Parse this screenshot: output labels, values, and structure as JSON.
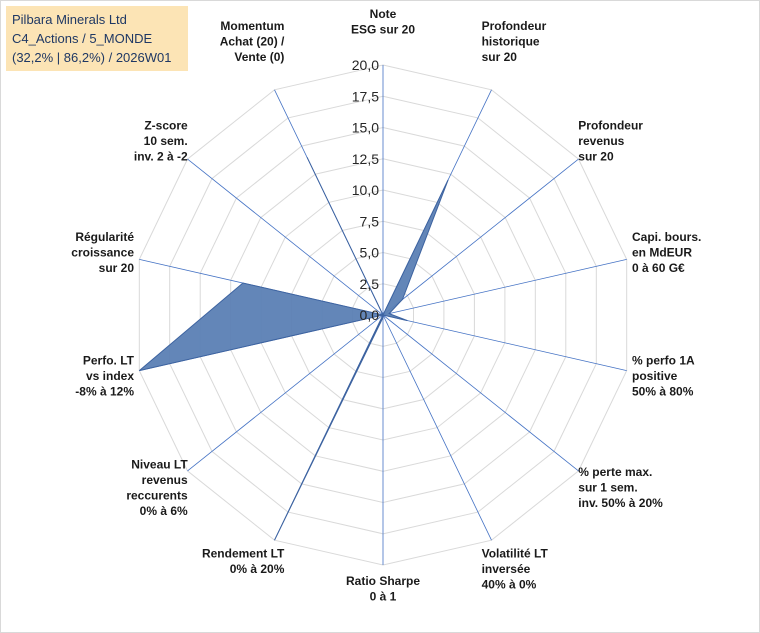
{
  "title": {
    "line1": "Pilbara Minerals Ltd",
    "line2": "C4_Actions / 5_MONDE",
    "line3": "(32,2% | 86,2%) / 2026W01"
  },
  "colors": {
    "fill": "#5b7fb4",
    "stroke": "#3d63a0",
    "spoke": "#4472c4",
    "grid": "#d9d9d9"
  },
  "chart_data": {
    "type": "radar",
    "rmax": 20,
    "tick_step": 2.5,
    "tick_labels": [
      "0,0",
      "2,5",
      "5,0",
      "7,5",
      "10,0",
      "12,5",
      "15,0",
      "17,5",
      "20,0"
    ],
    "axes": [
      {
        "label": [
          "Note",
          "ESG sur 20"
        ],
        "value": 0
      },
      {
        "label": [
          "Profondeur",
          "historique",
          "sur 20"
        ],
        "value": 12.0
      },
      {
        "label": [
          "Profondeur",
          "revenus",
          "sur 20"
        ],
        "value": 2.0
      },
      {
        "label": [
          "Capi. bours.",
          "en MdEUR",
          "0 à 60 G€"
        ],
        "value": 0.5
      },
      {
        "label": [
          "% perfo 1A",
          "positive",
          "50% à 80%"
        ],
        "value": 2.0
      },
      {
        "label": [
          "% perte max.",
          "sur 1 sem.",
          "inv. 50% à 20%"
        ],
        "value": 0
      },
      {
        "label": [
          "Volatilité LT",
          "inversée",
          "40% à 0%"
        ],
        "value": 0
      },
      {
        "label": [
          "Ratio Sharpe",
          "0 à 1"
        ],
        "value": 0.2
      },
      {
        "label": [
          "Rendement LT",
          "0% à 20%"
        ],
        "value": 20.0
      },
      {
        "label": [
          "Niveau LT",
          "revenus",
          "reccurents",
          "0% à 6%"
        ],
        "value": 0
      },
      {
        "label": [
          "Perfo. LT",
          "vs index",
          "-8% à 12%"
        ],
        "value": 20.0
      },
      {
        "label": [
          "Régularité",
          "croissance",
          "sur 20"
        ],
        "value": 11.5
      },
      {
        "label": [
          "Z-score",
          "10 sem.",
          "inv. 2 à -2"
        ],
        "value": 0
      },
      {
        "label": [
          "Momentum",
          "Achat (20) /",
          "Vente (0)"
        ],
        "value": 14.0
      }
    ]
  }
}
